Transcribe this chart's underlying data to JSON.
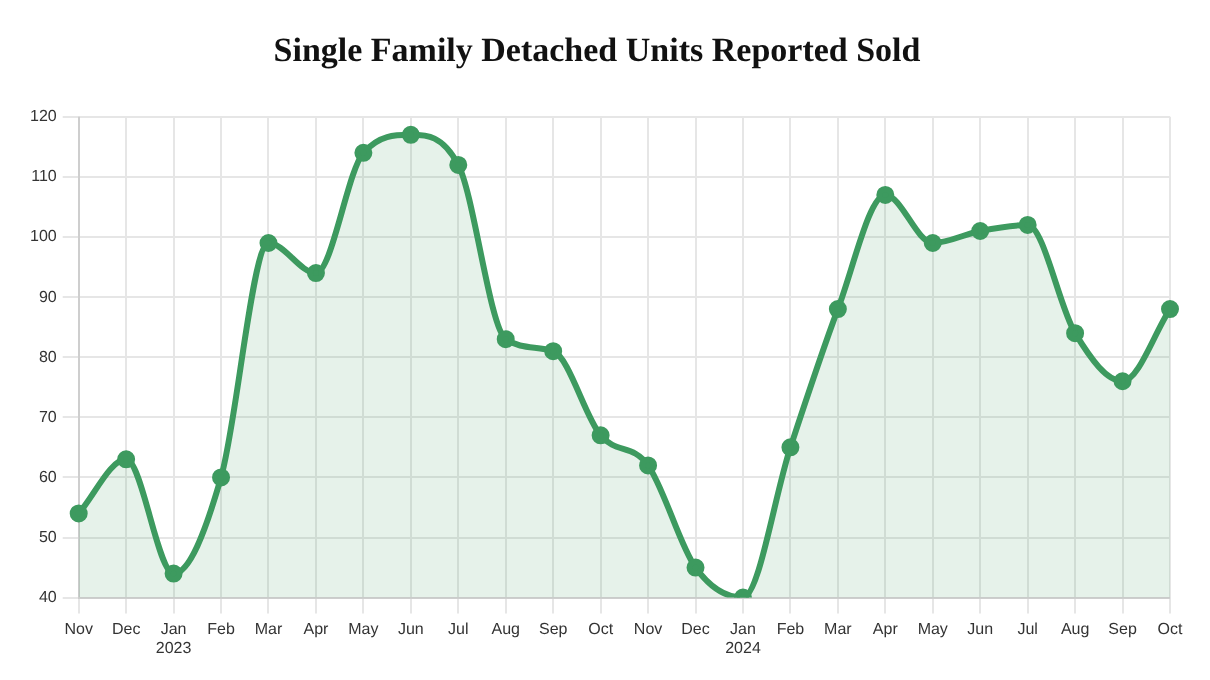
{
  "chart_data": {
    "type": "area",
    "title": "Single Family Detached Units Reported Sold",
    "categories": [
      "Nov",
      "Dec",
      "Jan 2023",
      "Feb",
      "Mar",
      "Apr",
      "May",
      "Jun",
      "Jul",
      "Aug",
      "Sep",
      "Oct",
      "Nov",
      "Dec",
      "Jan 2024",
      "Feb",
      "Mar",
      "Apr",
      "May",
      "Jun",
      "Jul",
      "Aug",
      "Sep",
      "Oct"
    ],
    "series": [
      {
        "color": "#3d9a5f",
        "values": [
          54,
          63,
          44,
          60,
          99,
          94,
          114,
          117,
          112,
          83,
          81,
          67,
          62,
          45,
          40,
          65,
          88,
          107,
          99,
          101,
          102,
          84,
          76,
          88
        ]
      }
    ],
    "ylim": [
      40,
      120
    ],
    "yticks": [
      40,
      50,
      60,
      70,
      80,
      90,
      100,
      110,
      120
    ],
    "grid": true,
    "legend": false,
    "marker": "circle",
    "line_style": "solid"
  }
}
